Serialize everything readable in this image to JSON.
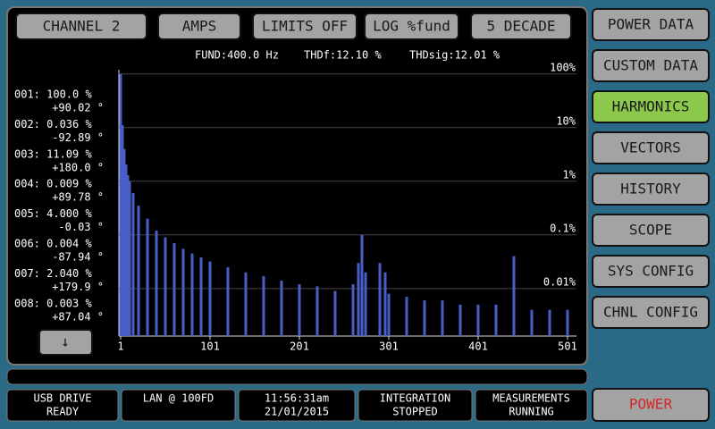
{
  "top_buttons": [
    "CHANNEL 2",
    "AMPS",
    "LIMITS OFF",
    "LOG %fund",
    "5 DECADE"
  ],
  "readouts": [
    "FUND:400.0 Hz",
    "THDf:12.10 %",
    "THDsig:12.01 %"
  ],
  "harmonic_list": [
    {
      "magnitude": "001: 100.0 %",
      "phase": "+90.02 °"
    },
    {
      "magnitude": "002: 0.036 %",
      "phase": "-92.89 °"
    },
    {
      "magnitude": "003: 11.09 %",
      "phase": "+180.0 °"
    },
    {
      "magnitude": "004: 0.009 %",
      "phase": "+89.78 °"
    },
    {
      "magnitude": "005: 4.000 %",
      "phase": "-0.03 °"
    },
    {
      "magnitude": "006: 0.004 %",
      "phase": "-87.94 °"
    },
    {
      "magnitude": "007: 2.040 %",
      "phase": "+179.9 °"
    },
    {
      "magnitude": "008: 0.003 %",
      "phase": "+87.04 °"
    }
  ],
  "scroll_button": "↓",
  "chart_data": {
    "type": "bar",
    "x": [
      1,
      3,
      5,
      7,
      9,
      11,
      15,
      21,
      31,
      41,
      51,
      61,
      71,
      81,
      91,
      101,
      121,
      141,
      161,
      181,
      201,
      221,
      241,
      261,
      267,
      271,
      275,
      291,
      297,
      301,
      321,
      341,
      361,
      381,
      401,
      421,
      441,
      461,
      481,
      501
    ],
    "values": [
      100,
      11.09,
      4.0,
      2.04,
      1.3,
      1.0,
      0.6,
      0.35,
      0.2,
      0.12,
      0.09,
      0.07,
      0.055,
      0.045,
      0.038,
      0.032,
      0.025,
      0.02,
      0.017,
      0.014,
      0.012,
      0.011,
      0.009,
      0.012,
      0.03,
      0.1,
      0.02,
      0.03,
      0.02,
      0.008,
      0.007,
      0.006,
      0.006,
      0.005,
      0.005,
      0.005,
      0.04,
      0.004,
      0.004,
      0.004
    ],
    "color": "#4a5ec8",
    "xlim": [
      1,
      501
    ],
    "xticks": [
      1,
      101,
      201,
      301,
      401,
      501
    ],
    "ylim": [
      0.0013,
      120
    ],
    "yticks": [
      {
        "value": 100,
        "label": "100%"
      },
      {
        "value": 10,
        "label": "10%"
      },
      {
        "value": 1,
        "label": "1%"
      },
      {
        "value": 0.1,
        "label": "0.1%"
      },
      {
        "value": 0.01,
        "label": "0.01%"
      }
    ],
    "log_y": true,
    "grid": true
  },
  "menu": [
    "POWER DATA",
    "CUSTOM DATA",
    "HARMONICS",
    "VECTORS",
    "HISTORY",
    "SCOPE",
    "SYS CONFIG",
    "CHNL CONFIG"
  ],
  "active_menu": 2,
  "status": [
    {
      "line1": "USB DRIVE",
      "line2": "READY"
    },
    {
      "line1": "LAN @ 100FD",
      "line2": null
    },
    {
      "line1": "11:56:31am",
      "line2": "21/01/2015"
    },
    {
      "line1": "INTEGRATION",
      "line2": "STOPPED"
    },
    {
      "line1": "MEASUREMENTS",
      "line2": "RUNNING"
    }
  ],
  "power_button": "POWER"
}
